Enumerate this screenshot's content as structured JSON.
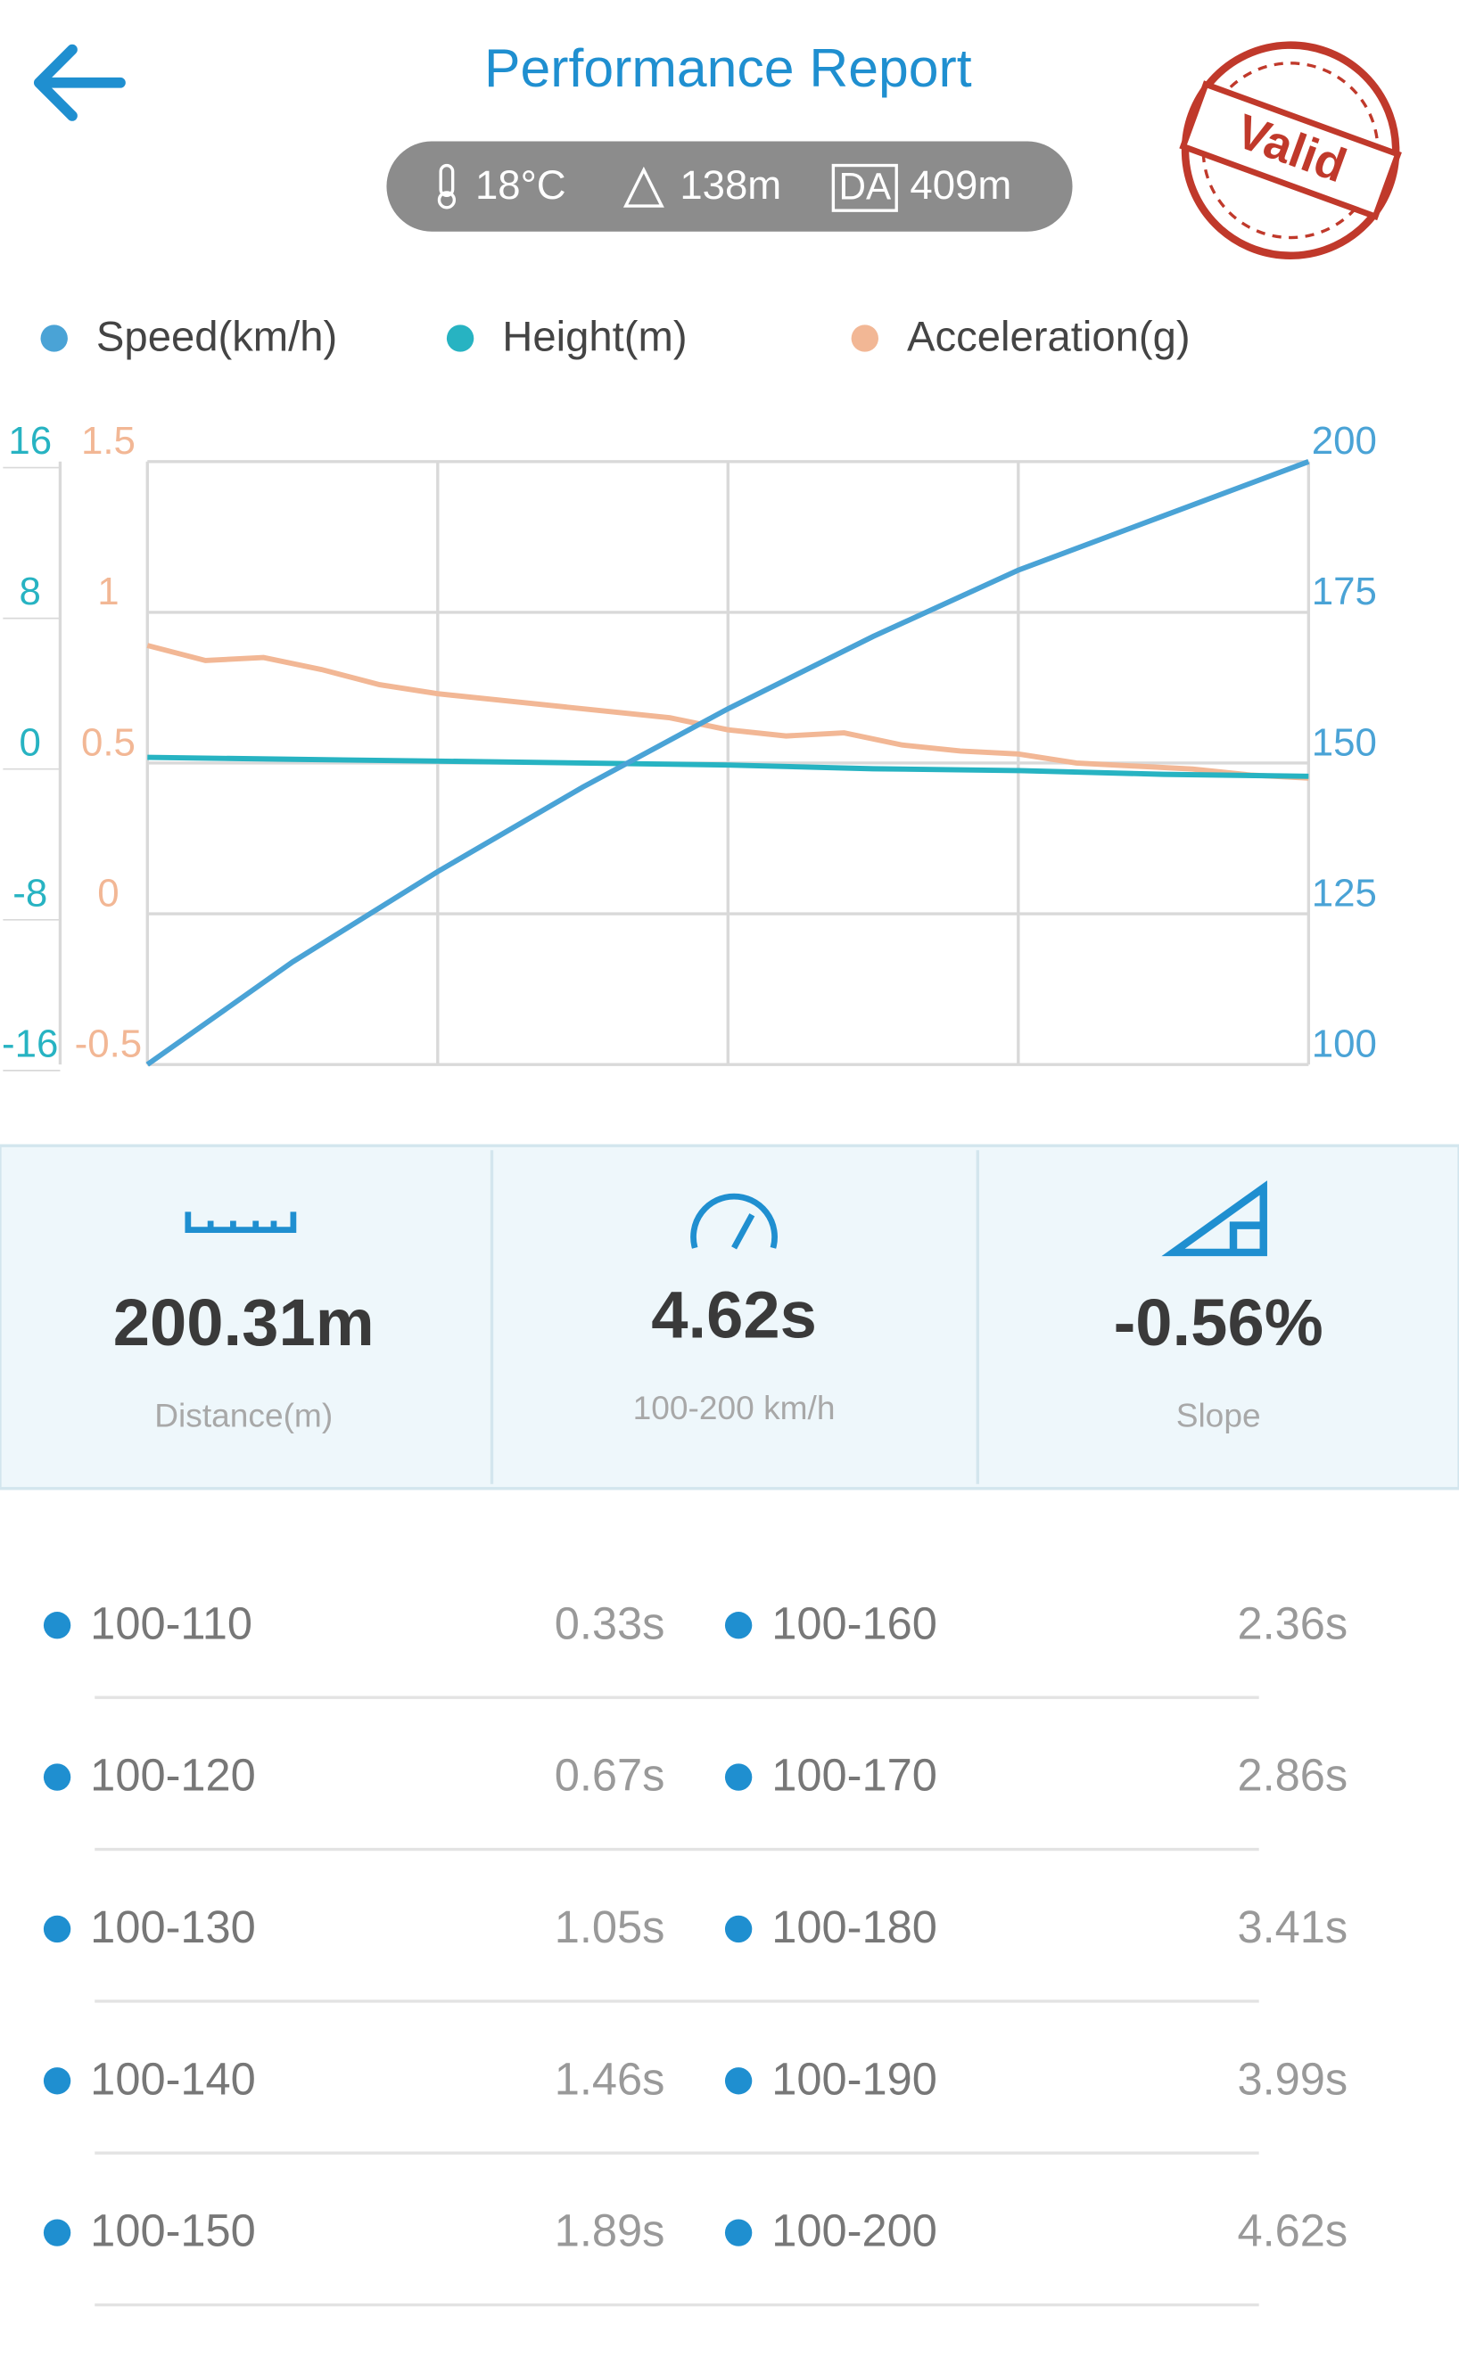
{
  "header": {
    "title": "Performance Report",
    "temperature": "18°C",
    "altitude": "138m",
    "da_badge": "DA",
    "density_altitude": "409m",
    "stamp": "Valid"
  },
  "chart_data": {
    "type": "line",
    "series": [
      {
        "name": "Speed(km/h)",
        "color": "#4aa3d6",
        "axis": "y2",
        "values": [
          100,
          117,
          132,
          146,
          159,
          171,
          182,
          191,
          200
        ]
      },
      {
        "name": "Height(m)",
        "color": "#27b3c2",
        "values": [
          0.3,
          0.2,
          0.1,
          0,
          -0.1,
          -0.3,
          -0.4,
          -0.6,
          -0.7
        ]
      },
      {
        "name": "Acceleration(g)",
        "color": "#f2b795",
        "axis": "y3",
        "values": [
          0.89,
          0.84,
          0.85,
          0.81,
          0.76,
          0.73,
          0.71,
          0.69,
          0.67,
          0.65,
          0.61,
          0.59,
          0.6,
          0.56,
          0.54,
          0.53,
          0.5,
          0.49,
          0.48,
          0.46,
          0.45
        ]
      }
    ],
    "ylim": [
      -16,
      16
    ],
    "yticks": [
      -16,
      -8,
      0,
      8,
      16
    ],
    "y2lim": [
      100,
      200
    ],
    "y2ticks": [
      100,
      125,
      150,
      175,
      200
    ],
    "y3lim": [
      -0.5,
      1.5
    ],
    "y3ticks": [
      -0.5,
      0,
      0.5,
      1,
      1.5
    ],
    "grid": true
  },
  "stats": [
    {
      "value": "200.31m",
      "label": "Distance(m)"
    },
    {
      "value": "4.62s",
      "label": "100-200 km/h"
    },
    {
      "value": "-0.56%",
      "label": "Slope"
    }
  ],
  "splits": [
    {
      "range": "100-110",
      "time": "0.33s"
    },
    {
      "range": "100-120",
      "time": "0.67s"
    },
    {
      "range": "100-130",
      "time": "1.05s"
    },
    {
      "range": "100-140",
      "time": "1.46s"
    },
    {
      "range": "100-150",
      "time": "1.89s"
    },
    {
      "range": "100-160",
      "time": "2.36s"
    },
    {
      "range": "100-170",
      "time": "2.86s"
    },
    {
      "range": "100-180",
      "time": "3.41s"
    },
    {
      "range": "100-190",
      "time": "3.99s"
    },
    {
      "range": "100-200",
      "time": "4.62s"
    }
  ]
}
